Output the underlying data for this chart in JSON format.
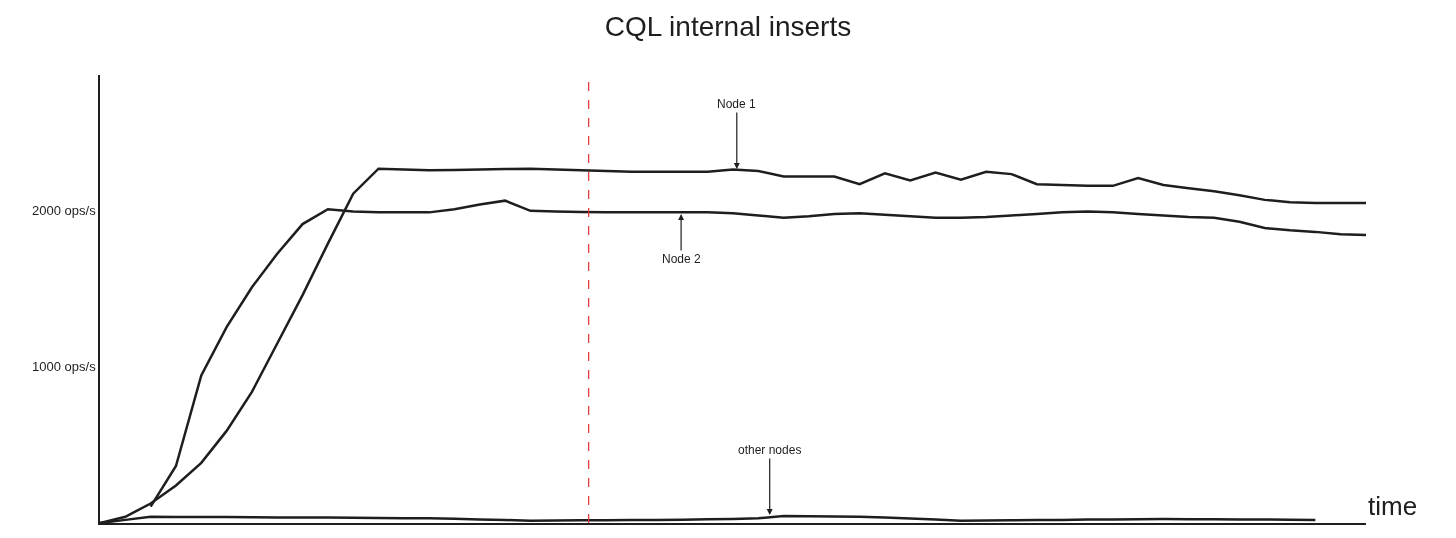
{
  "chart_data": {
    "type": "line",
    "title": "CQL internal inserts",
    "xlabel": "time",
    "categories": [
      null,
      null,
      null,
      null,
      null,
      null,
      null,
      null,
      null,
      null,
      null,
      null,
      null,
      null,
      null,
      null,
      null,
      null,
      null,
      null,
      null,
      null,
      null,
      null,
      null,
      null,
      null,
      null,
      null,
      null,
      null,
      null,
      null,
      null,
      null,
      null,
      null,
      null,
      null,
      null,
      null,
      null,
      null,
      null,
      null,
      null,
      null,
      null,
      null,
      null,
      null
    ],
    "ylim": [
      0,
      2870
    ],
    "yticks": [
      {
        "value": 1000,
        "label": "1000 ops/s"
      },
      {
        "value": 2000,
        "label": "2000 ops/s"
      }
    ],
    "tick_labels": "y",
    "grid": false,
    "marker": "none",
    "line_style": "solid",
    "series": [
      {
        "color": "#1e1e1e",
        "values": [
          0,
          40,
          125,
          240,
          385,
          590,
          840,
          1150,
          1460,
          1790,
          2110,
          2270,
          2265,
          2260,
          2262,
          2265,
          2268,
          2270,
          2265,
          2260,
          2255,
          2250,
          2250,
          2250,
          2250,
          2265,
          2255,
          2220,
          2220,
          2220,
          2170,
          2240,
          2195,
          2245,
          2200,
          2250,
          2235,
          2170,
          2165,
          2160,
          2160,
          2210,
          2165,
          2145,
          2125,
          2100,
          2070,
          2055,
          2050,
          2050,
          2050
        ]
      },
      {
        "color": "#1e1e1e",
        "values": [
          null,
          null,
          105,
          365,
          945,
          1255,
          1510,
          1725,
          1915,
          2010,
          1995,
          1990,
          1990,
          1990,
          2010,
          2040,
          2065,
          2000,
          1995,
          1992,
          1990,
          1990,
          1990,
          1990,
          1990,
          1985,
          1970,
          1955,
          1965,
          1980,
          1985,
          1975,
          1965,
          1955,
          1955,
          1960,
          1970,
          1980,
          1990,
          1995,
          1990,
          1980,
          1970,
          1960,
          1955,
          1930,
          1890,
          1875,
          1865,
          1850,
          1845
        ]
      },
      {
        "color": "#1e1e1e",
        "values": [
          0,
          20,
          40,
          39,
          38,
          38,
          37,
          36,
          35,
          35,
          33,
          32,
          31,
          30,
          27,
          23,
          19,
          15,
          16,
          17,
          18,
          19,
          20,
          21,
          24,
          26,
          30,
          45,
          43,
          42,
          40,
          35,
          29,
          22,
          15,
          16,
          18,
          19,
          20,
          22,
          23,
          24,
          25,
          24,
          24,
          23,
          22,
          21,
          20,
          null,
          null
        ]
      }
    ],
    "annotations": [
      "Node 1",
      "Node 2",
      "other nodes"
    ]
  }
}
